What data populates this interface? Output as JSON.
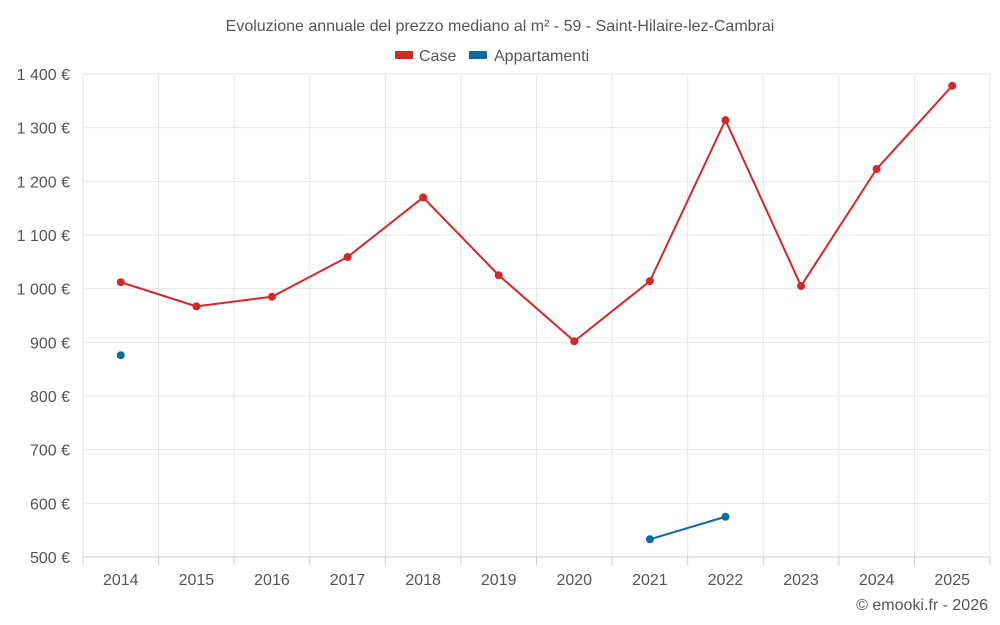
{
  "chart_data": {
    "type": "line",
    "title": "Evoluzione annuale del prezzo mediano al m² - 59 - Saint-Hilaire-lez-Cambrai",
    "categories": [
      "2014",
      "2015",
      "2016",
      "2017",
      "2018",
      "2019",
      "2020",
      "2021",
      "2022",
      "2023",
      "2024",
      "2025"
    ],
    "ylim": [
      500,
      1400
    ],
    "yticks": [
      500,
      600,
      700,
      800,
      900,
      1000,
      1100,
      1200,
      1300,
      1400
    ],
    "ytick_labels": [
      "500 €",
      "600 €",
      "700 €",
      "800 €",
      "900 €",
      "1 000 €",
      "1 100 €",
      "1 200 €",
      "1 300 €",
      "1 400 €"
    ],
    "grid": true,
    "legend_position": "top-center",
    "series": [
      {
        "name": "Case",
        "color": "#d62728",
        "values": [
          1012,
          967,
          985,
          1059,
          1170,
          1025,
          902,
          1014,
          1314,
          1005,
          1223,
          1378
        ]
      },
      {
        "name": "Appartamenti",
        "color": "#0a6aa1",
        "values": [
          876,
          null,
          null,
          null,
          null,
          null,
          null,
          533,
          575,
          null,
          null,
          null
        ]
      }
    ]
  },
  "credit": "© emooki.fr - 2026"
}
